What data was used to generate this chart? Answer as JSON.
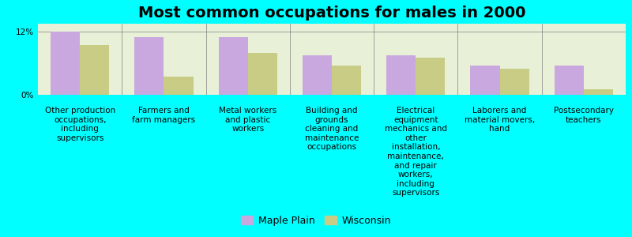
{
  "title": "Most common occupations for males in 2000",
  "categories": [
    "Other production\noccupations,\nincluding\nsupervisors",
    "Farmers and\nfarm managers",
    "Metal workers\nand plastic\nworkers",
    "Building and\ngrounds\ncleaning and\nmaintenance\noccupations",
    "Electrical\nequipment\nmechanics and\nother\ninstallation,\nmaintenance,\nand repair\nworkers,\nincluding\nsupervisors",
    "Laborers and\nmaterial movers,\nhand",
    "Postsecondary\nteachers"
  ],
  "maple_plain_values": [
    12.0,
    11.0,
    11.0,
    7.5,
    7.5,
    5.5,
    5.5
  ],
  "wisconsin_values": [
    9.5,
    3.5,
    8.0,
    5.5,
    7.0,
    5.0,
    1.0
  ],
  "maple_plain_color": "#c9a8e0",
  "wisconsin_color": "#c8cc85",
  "background_color": "#00ffff",
  "plot_bg_color": "#e8f0d8",
  "ylim": [
    0,
    13.5
  ],
  "yticks": [
    0,
    12
  ],
  "ytick_labels": [
    "0%",
    "12%"
  ],
  "bar_width": 0.35,
  "title_fontsize": 14,
  "legend_fontsize": 9,
  "tick_fontsize": 7.5
}
